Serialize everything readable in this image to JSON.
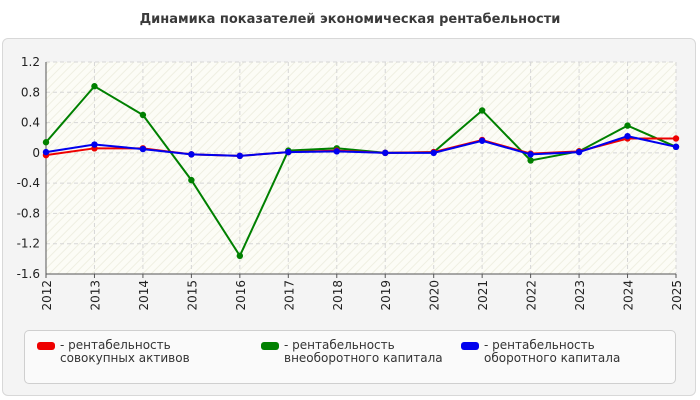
{
  "chart_data": {
    "type": "line",
    "title": "Динамика показателей экономическая рентабельности",
    "categories": [
      "2012",
      "2013",
      "2014",
      "2015",
      "2016",
      "2017",
      "2018",
      "2019",
      "2020",
      "2021",
      "2022",
      "2023",
      "2024",
      "2025"
    ],
    "ylim": [
      -1.6,
      1.2
    ],
    "yticks": [
      1.2,
      0.8,
      0.4,
      0,
      -0.4,
      -0.8,
      -1.2,
      -1.6
    ],
    "grid": true,
    "legend_position": "bottom",
    "series": [
      {
        "name": "- рентабельность совокупных активов",
        "color": "#ee0000",
        "values": [
          -0.03,
          0.06,
          0.06,
          -0.02,
          -0.04,
          0.01,
          0.03,
          0.0,
          0.01,
          0.17,
          -0.01,
          0.02,
          0.19,
          0.19
        ]
      },
      {
        "name": "- рентабельность внеоборотного капитала",
        "color": "#008000",
        "values": [
          0.14,
          0.88,
          0.5,
          -0.36,
          -1.36,
          0.03,
          0.06,
          0.0,
          0.01,
          0.56,
          -0.1,
          0.02,
          0.36,
          0.08
        ]
      },
      {
        "name": "- рентабельность оборотного капитала",
        "color": "#0000ee",
        "values": [
          0.01,
          0.11,
          0.05,
          -0.02,
          -0.04,
          0.01,
          0.02,
          0.0,
          0.0,
          0.16,
          -0.02,
          0.01,
          0.22,
          0.08
        ]
      }
    ]
  }
}
